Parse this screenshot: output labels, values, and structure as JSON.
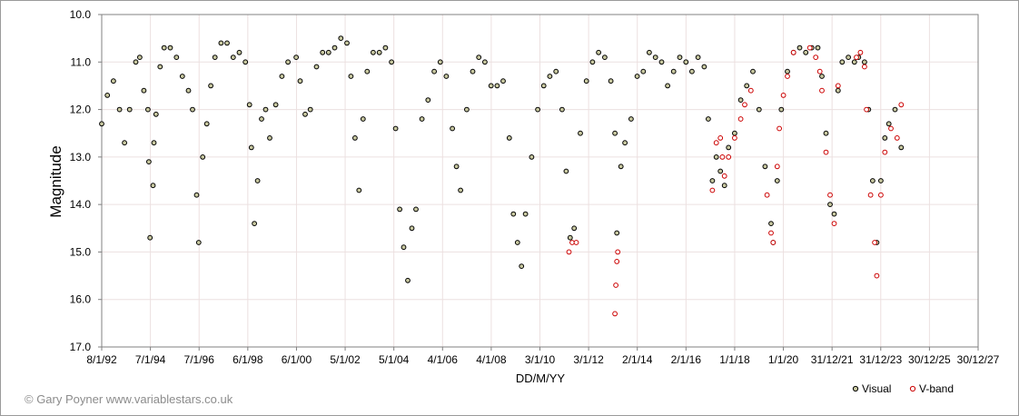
{
  "chart_data": {
    "type": "scatter",
    "title": "",
    "xlabel": "DD/M/YY",
    "ylabel": "Magnitude",
    "y_inverted": true,
    "ylim": [
      10.0,
      17.0
    ],
    "ytick_labels": [
      "10.0",
      "11.0",
      "12.0",
      "13.0",
      "14.0",
      "15.0",
      "16.0",
      "17.0"
    ],
    "xlim": [
      "8/1/92",
      "30/12/27"
    ],
    "xtick_labels": [
      "8/1/92",
      "7/1/94",
      "7/1/96",
      "6/1/98",
      "6/1/00",
      "5/1/02",
      "5/1/04",
      "4/1/06",
      "4/1/08",
      "3/1/10",
      "3/1/12",
      "2/1/14",
      "2/1/16",
      "1/1/18",
      "1/1/20",
      "31/12/21",
      "31/12/23",
      "30/12/25",
      "30/12/27"
    ],
    "grid": true,
    "legend_position": "bottom-right",
    "series": [
      {
        "name": "Visual",
        "marker": "open-circle",
        "color": "#000000",
        "fill": "#c8c8a0",
        "points": [
          [
            "8/1/92",
            12.3
          ],
          [
            "1/4/92",
            11.7
          ],
          [
            "1/7/92",
            11.4
          ],
          [
            "1/10/92",
            12.0
          ],
          [
            "15/12/92",
            12.7
          ],
          [
            "1/3/93",
            12.0
          ],
          [
            "1/6/93",
            11.0
          ],
          [
            "1/8/93",
            10.9
          ],
          [
            "1/10/93",
            11.6
          ],
          [
            "1/12/93",
            12.0
          ],
          [
            "15/12/93",
            13.1
          ],
          [
            "1/1/94",
            14.7
          ],
          [
            "15/2/94",
            13.6
          ],
          [
            "1/3/94",
            12.7
          ],
          [
            "1/4/94",
            12.1
          ],
          [
            "1/6/94",
            11.1
          ],
          [
            "1/8/94",
            10.7
          ],
          [
            "1/11/94",
            10.7
          ],
          [
            "1/2/95",
            10.9
          ],
          [
            "1/5/95",
            11.3
          ],
          [
            "1/8/95",
            11.6
          ],
          [
            "1/10/95",
            12.0
          ],
          [
            "1/12/95",
            13.8
          ],
          [
            "1/1/96",
            14.8
          ],
          [
            "1/3/96",
            13.0
          ],
          [
            "1/5/96",
            12.3
          ],
          [
            "1/7/96",
            11.5
          ],
          [
            "1/9/96",
            10.9
          ],
          [
            "1/12/96",
            10.6
          ],
          [
            "1/3/97",
            10.6
          ],
          [
            "1/6/97",
            10.9
          ],
          [
            "1/9/97",
            10.8
          ],
          [
            "1/12/97",
            11.0
          ],
          [
            "1/2/98",
            11.9
          ],
          [
            "1/3/98",
            12.8
          ],
          [
            "15/4/98",
            14.4
          ],
          [
            "1/6/98",
            13.5
          ],
          [
            "1/8/98",
            12.2
          ],
          [
            "1/10/98",
            12.0
          ],
          [
            "1/12/98",
            12.6
          ],
          [
            "1/3/99",
            11.9
          ],
          [
            "1/6/99",
            11.3
          ],
          [
            "1/9/99",
            11.0
          ],
          [
            "1/1/00",
            10.9
          ],
          [
            "1/3/00",
            11.4
          ],
          [
            "15/5/00",
            12.1
          ],
          [
            "1/8/00",
            12.0
          ],
          [
            "1/11/00",
            11.1
          ],
          [
            "1/2/01",
            10.8
          ],
          [
            "1/5/01",
            10.8
          ],
          [
            "1/8/01",
            10.7
          ],
          [
            "1/11/01",
            10.5
          ],
          [
            "1/2/02",
            10.6
          ],
          [
            "1/4/02",
            11.3
          ],
          [
            "1/6/02",
            12.6
          ],
          [
            "1/8/02",
            13.7
          ],
          [
            "1/10/02",
            12.2
          ],
          [
            "1/12/02",
            11.2
          ],
          [
            "1/3/03",
            10.8
          ],
          [
            "1/6/03",
            10.8
          ],
          [
            "1/9/03",
            10.7
          ],
          [
            "1/12/03",
            11.0
          ],
          [
            "1/2/04",
            12.4
          ],
          [
            "1/4/04",
            14.1
          ],
          [
            "1/6/04",
            14.9
          ],
          [
            "1/8/04",
            15.6
          ],
          [
            "1/10/04",
            14.5
          ],
          [
            "1/12/04",
            14.1
          ],
          [
            "1/3/05",
            12.2
          ],
          [
            "1/6/05",
            11.8
          ],
          [
            "1/9/05",
            11.2
          ],
          [
            "1/12/05",
            11.0
          ],
          [
            "1/3/06",
            11.3
          ],
          [
            "1/6/06",
            12.4
          ],
          [
            "1/8/06",
            13.2
          ],
          [
            "1/10/06",
            13.7
          ],
          [
            "1/1/07",
            12.0
          ],
          [
            "1/4/07",
            11.2
          ],
          [
            "1/7/07",
            10.9
          ],
          [
            "1/10/07",
            11.0
          ],
          [
            "1/1/08",
            11.5
          ],
          [
            "1/4/08",
            11.5
          ],
          [
            "1/7/08",
            11.4
          ],
          [
            "1/10/08",
            12.6
          ],
          [
            "1/12/08",
            14.2
          ],
          [
            "1/2/09",
            14.8
          ],
          [
            "1/4/09",
            15.3
          ],
          [
            "1/6/09",
            14.2
          ],
          [
            "1/9/09",
            13.0
          ],
          [
            "1/12/09",
            12.0
          ],
          [
            "1/3/10",
            11.5
          ],
          [
            "1/6/10",
            11.3
          ],
          [
            "1/9/10",
            11.2
          ],
          [
            "1/12/10",
            12.0
          ],
          [
            "1/2/11",
            13.3
          ],
          [
            "1/4/11",
            14.7
          ],
          [
            "1/6/11",
            14.5
          ],
          [
            "1/9/11",
            12.5
          ],
          [
            "1/12/11",
            11.4
          ],
          [
            "1/3/12",
            11.0
          ],
          [
            "1/6/12",
            10.8
          ],
          [
            "1/9/12",
            10.9
          ],
          [
            "1/12/12",
            11.4
          ],
          [
            "1/2/13",
            12.5
          ],
          [
            "1/3/13",
            14.6
          ],
          [
            "1/5/13",
            13.2
          ],
          [
            "1/7/13",
            12.7
          ],
          [
            "1/10/13",
            12.2
          ],
          [
            "1/1/14",
            11.3
          ],
          [
            "1/4/14",
            11.2
          ],
          [
            "1/7/14",
            10.8
          ],
          [
            "1/10/14",
            10.9
          ],
          [
            "1/1/15",
            11.0
          ],
          [
            "1/4/15",
            11.5
          ],
          [
            "1/7/15",
            11.2
          ],
          [
            "1/10/15",
            10.9
          ],
          [
            "1/1/16",
            11.0
          ],
          [
            "1/4/16",
            11.2
          ],
          [
            "1/7/16",
            10.9
          ],
          [
            "1/10/16",
            11.1
          ],
          [
            "1/12/16",
            12.2
          ],
          [
            "1/2/17",
            13.5
          ],
          [
            "1/4/17",
            13.0
          ],
          [
            "1/6/17",
            13.3
          ],
          [
            "1/8/17",
            13.6
          ],
          [
            "1/10/17",
            12.8
          ],
          [
            "1/1/18",
            12.5
          ],
          [
            "1/4/18",
            11.8
          ],
          [
            "1/7/18",
            11.5
          ],
          [
            "1/10/18",
            11.2
          ],
          [
            "1/1/19",
            12.0
          ],
          [
            "1/4/19",
            13.2
          ],
          [
            "1/7/19",
            14.4
          ],
          [
            "1/8/19",
            14.8
          ],
          [
            "1/10/19",
            13.5
          ],
          [
            "1/12/19",
            12.0
          ],
          [
            "1/3/20",
            11.2
          ],
          [
            "1/6/20",
            10.8
          ],
          [
            "1/9/20",
            10.7
          ],
          [
            "1/12/20",
            10.8
          ],
          [
            "1/3/21",
            10.7
          ],
          [
            "1/6/21",
            10.7
          ],
          [
            "1/8/21",
            11.3
          ],
          [
            "1/10/21",
            12.5
          ],
          [
            "1/12/21",
            14.0
          ],
          [
            "1/2/22",
            14.2
          ],
          [
            "1/4/22",
            11.6
          ],
          [
            "1/6/22",
            11.0
          ],
          [
            "1/9/22",
            10.9
          ],
          [
            "1/12/22",
            11.0
          ],
          [
            "1/2/23",
            10.9
          ],
          [
            "1/5/23",
            11.0
          ],
          [
            "1/7/23",
            12.0
          ],
          [
            "1/9/23",
            13.5
          ],
          [
            "1/11/23",
            14.8
          ],
          [
            "1/1/24",
            13.5
          ],
          [
            "1/3/24",
            12.6
          ],
          [
            "1/5/24",
            12.3
          ],
          [
            "1/8/24",
            12.0
          ],
          [
            "1/11/24",
            12.8
          ]
        ]
      },
      {
        "name": "V-band",
        "marker": "open-circle",
        "color": "#cc0000",
        "fill": "#ffffff",
        "points": [
          [
            "15/3/11",
            15.0
          ],
          [
            "1/5/11",
            14.8
          ],
          [
            "1/7/11",
            14.8
          ],
          [
            "1/2/13",
            16.3
          ],
          [
            "15/2/13",
            15.7
          ],
          [
            "1/3/13",
            15.2
          ],
          [
            "15/3/13",
            15.0
          ],
          [
            "1/2/17",
            13.7
          ],
          [
            "1/4/17",
            12.7
          ],
          [
            "1/6/17",
            12.6
          ],
          [
            "1/7/17",
            13.0
          ],
          [
            "1/8/17",
            13.4
          ],
          [
            "1/10/17",
            13.0
          ],
          [
            "1/1/18",
            12.6
          ],
          [
            "1/4/18",
            12.2
          ],
          [
            "1/6/18",
            11.9
          ],
          [
            "1/9/18",
            11.6
          ],
          [
            "1/5/19",
            13.8
          ],
          [
            "1/7/19",
            14.6
          ],
          [
            "1/8/19",
            14.8
          ],
          [
            "1/10/19",
            13.2
          ],
          [
            "1/11/19",
            12.4
          ],
          [
            "1/1/20",
            11.7
          ],
          [
            "1/3/20",
            11.3
          ],
          [
            "1/6/20",
            10.8
          ],
          [
            "1/2/21",
            10.7
          ],
          [
            "1/5/21",
            10.9
          ],
          [
            "1/7/21",
            11.2
          ],
          [
            "1/8/21",
            11.6
          ],
          [
            "1/10/21",
            12.9
          ],
          [
            "1/12/21",
            13.8
          ],
          [
            "1/2/22",
            14.4
          ],
          [
            "1/4/22",
            11.5
          ],
          [
            "1/1/23",
            10.9
          ],
          [
            "1/3/23",
            10.8
          ],
          [
            "1/5/23",
            11.1
          ],
          [
            "1/6/23",
            12.0
          ],
          [
            "1/8/23",
            13.8
          ],
          [
            "1/10/23",
            14.8
          ],
          [
            "1/11/23",
            15.5
          ],
          [
            "1/1/24",
            13.8
          ],
          [
            "1/3/24",
            12.9
          ],
          [
            "1/6/24",
            12.4
          ],
          [
            "1/9/24",
            12.6
          ],
          [
            "1/11/24",
            11.9
          ]
        ]
      }
    ]
  },
  "credit": "© Gary Poyner www.variablestars.co.uk",
  "colors": {
    "plot_border": "#808080",
    "grid": "#ece0e0",
    "visual_fill": "#c8c8a0",
    "vband_stroke": "#cc0000"
  }
}
